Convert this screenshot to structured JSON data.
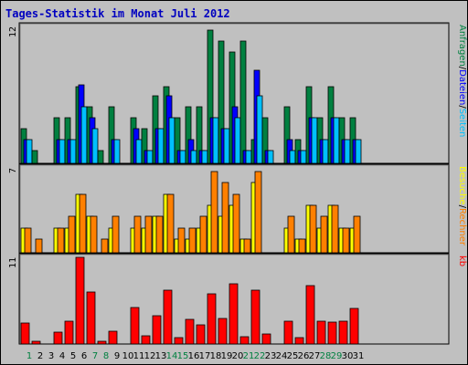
{
  "chart_data": {
    "title": "Tages-Statistik im Monat Juli 2012",
    "days": [
      "1",
      "2",
      "3",
      "4",
      "5",
      "6",
      "7",
      "8",
      "9",
      "10",
      "11",
      "12",
      "13",
      "14",
      "15",
      "16",
      "17",
      "18",
      "19",
      "20",
      "21",
      "22",
      "23",
      "24",
      "25",
      "26",
      "27",
      "28",
      "29",
      "30",
      "31"
    ],
    "weekend_days": [
      1,
      7,
      8,
      14,
      15,
      21,
      22,
      28,
      29
    ],
    "panels": [
      {
        "type": "bar",
        "ymax_label": "12",
        "ymax": 12.5,
        "legend": [
          "Anfragen",
          "/",
          "Dateien",
          "/",
          "Seiten"
        ],
        "legend_colors": [
          "#008040",
          "#000000",
          "#0000ff",
          "#000000",
          "#00c0ff"
        ],
        "series": [
          {
            "name": "Anfragen",
            "color": "#008040",
            "values": [
              3.2,
              1.2,
              0,
              4.2,
              4.2,
              7,
              5.2,
              1.2,
              5.2,
              0,
              4.2,
              3.2,
              6.2,
              7,
              4.2,
              5.2,
              5.2,
              12.2,
              11.2,
              10.2,
              11.2,
              2.2,
              4.2,
              0,
              5.2,
              2.2,
              7,
              4.2,
              7,
              4.2,
              4.2
            ]
          },
          {
            "name": "Dateien",
            "color": "#0000ff",
            "values": [
              2.2,
              0,
              0,
              2.2,
              2.2,
              7.2,
              4.2,
              0,
              2.2,
              0,
              3.2,
              1.2,
              3.2,
              6.2,
              1.2,
              2.2,
              1.2,
              4.2,
              3.2,
              5.2,
              1.2,
              8.5,
              1.2,
              0,
              2.2,
              1.2,
              4.2,
              2.2,
              4.2,
              2.2,
              2.2
            ]
          },
          {
            "name": "Seiten",
            "color": "#00c0ff",
            "values": [
              2.2,
              0,
              0,
              2.2,
              2.2,
              5.2,
              3.2,
              0,
              2.2,
              0,
              2.2,
              1.2,
              3.2,
              4.2,
              1.2,
              1.2,
              1.2,
              4.2,
              3.2,
              4.2,
              1.2,
              6.2,
              1.2,
              0,
              1.2,
              1.2,
              4.2,
              2.2,
              4.2,
              2.2,
              2.2
            ]
          }
        ]
      },
      {
        "type": "bar",
        "ymax_label": "7",
        "ymax": 7.5,
        "legend": [
          "Besuche",
          "/",
          "Rechner"
        ],
        "legend_colors": [
          "#ffff00",
          "#000000",
          "#ff8000"
        ],
        "series": [
          {
            "name": "Besuche",
            "color": "#ffff00",
            "values": [
              2.2,
              0,
              0,
              2.2,
              2.2,
              5.2,
              3.2,
              0,
              2.2,
              0,
              2.2,
              2.2,
              3.2,
              5.2,
              1.2,
              1.2,
              2.2,
              4.2,
              3.2,
              4.2,
              1.2,
              6.2,
              0,
              0,
              2.2,
              1.2,
              4.2,
              2.2,
              4.2,
              2.2,
              2.2
            ]
          },
          {
            "name": "Rechner",
            "color": "#ff8000",
            "values": [
              2.2,
              1.2,
              0,
              2.2,
              3.2,
              5.2,
              3.2,
              1.2,
              3.2,
              0,
              3.2,
              3.2,
              3.2,
              5.2,
              2.2,
              2.2,
              3.2,
              7.2,
              6.2,
              5.2,
              1.2,
              7.2,
              0,
              0,
              3.2,
              1.2,
              4.2,
              3.2,
              4.2,
              2.2,
              3.2
            ]
          }
        ]
      },
      {
        "type": "bar",
        "ymax_label": "11",
        "ymax": 11.2,
        "legend": [
          "kb"
        ],
        "legend_colors": [
          "#ff0000"
        ],
        "series": [
          {
            "name": "kb",
            "color": "#ff0000",
            "values": [
              2.7,
              0.3,
              0,
              1.5,
              2.9,
              11.2,
              6.7,
              0.3,
              1.6,
              0,
              4.7,
              1.1,
              3.6,
              6.9,
              0.8,
              3.2,
              2.5,
              6.5,
              3.3,
              7.8,
              1.0,
              6.9,
              1.3,
              0,
              3.0,
              0.8,
              7.5,
              3.0,
              2.8,
              3.0,
              4.6
            ]
          }
        ]
      }
    ]
  }
}
